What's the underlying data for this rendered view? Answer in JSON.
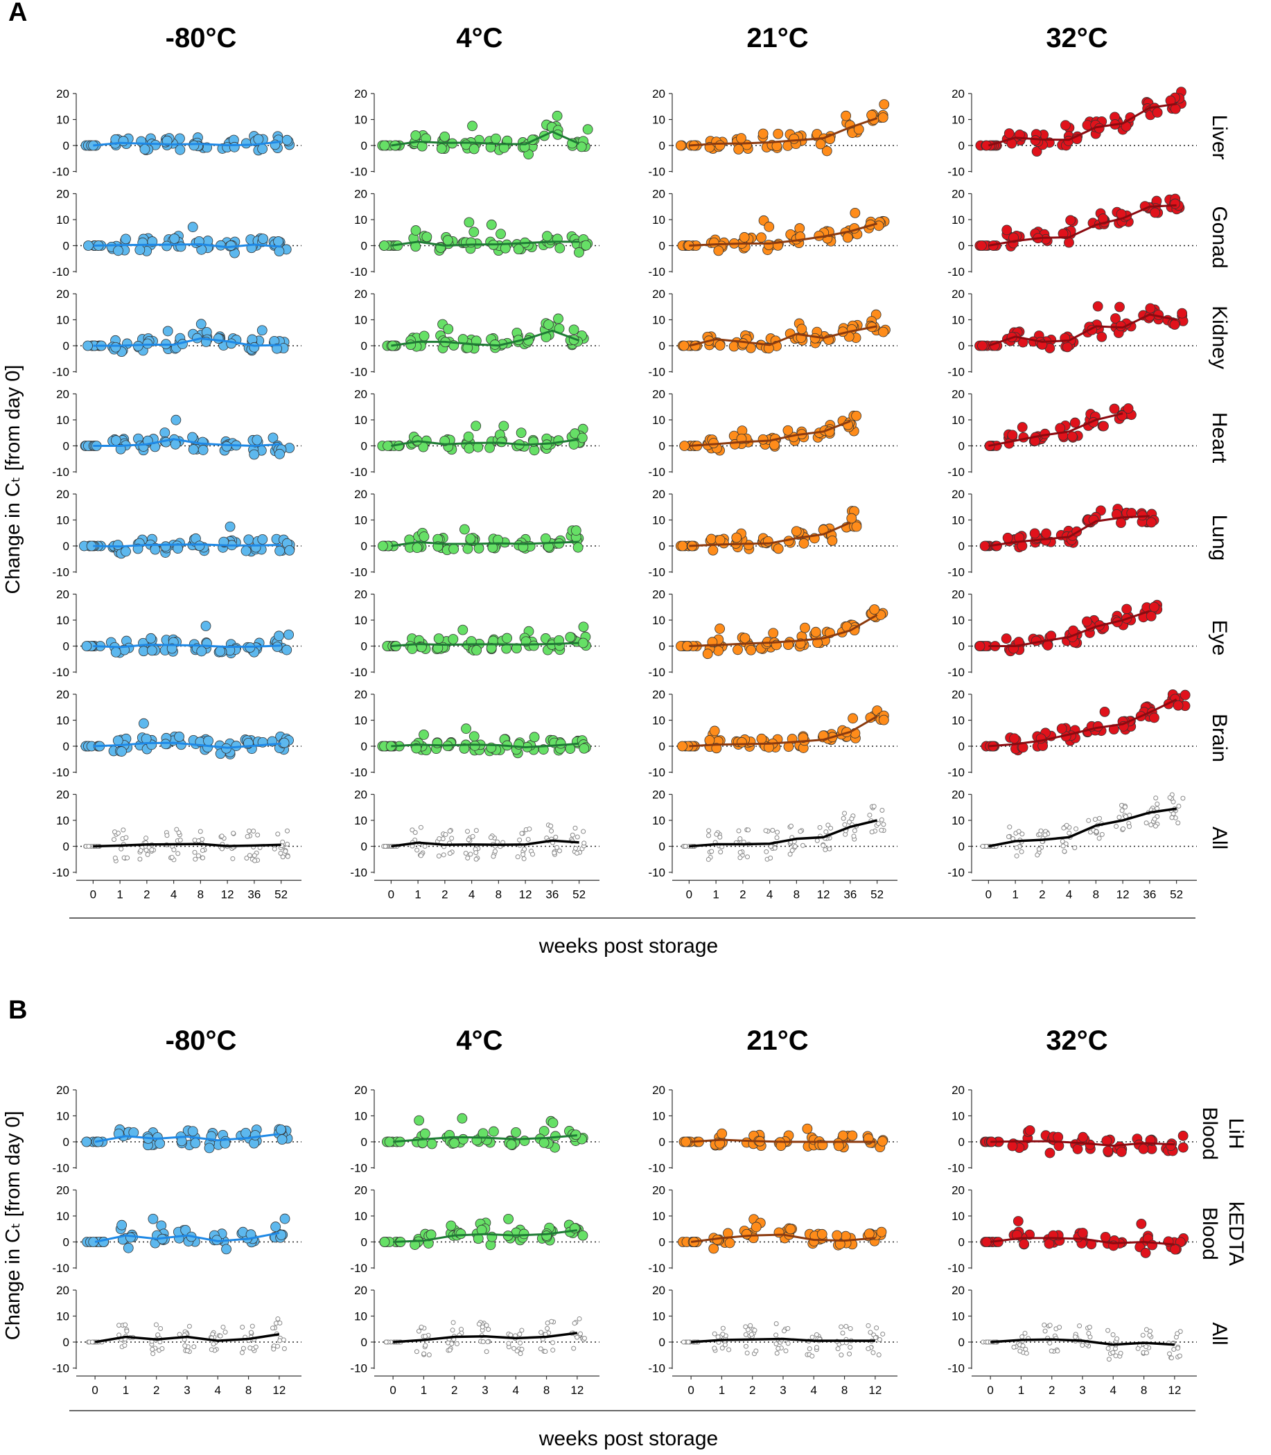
{
  "panel_labels": [
    "A",
    "B"
  ],
  "temperatures": [
    "-80°C",
    "4°C",
    "21°C",
    "32°C"
  ],
  "y_axis_label": "Change in Cₜ [from day 0]",
  "x_axis_label": "weeks post storage",
  "y_ticks": [
    20,
    10,
    0,
    -10
  ],
  "colors": {
    "-80°C": {
      "fill": "#5DB8EE",
      "line": "#1E88E5"
    },
    "4°C": {
      "fill": "#66E066",
      "line": "#1E7B34"
    },
    "21°C": {
      "fill": "#FF8C1A",
      "line": "#8B3A0E"
    },
    "32°C": {
      "fill": "#E0121B",
      "line": "#8B0A10"
    },
    "All": {
      "fill": "#cccccc",
      "line": "#000000"
    }
  },
  "chart_data": [
    {
      "panel": "A",
      "type": "scatter",
      "xlabel": "weeks post storage",
      "ylabel": "Change in Cₜ [from day 0]",
      "ylim": [
        -10,
        20
      ],
      "categories": [
        "0",
        "1",
        "2",
        "4",
        "8",
        "12",
        "36",
        "52"
      ],
      "rows": [
        "Liver",
        "Gonad",
        "Kidney",
        "Heart",
        "Lung",
        "Eye",
        "Brain",
        "All"
      ],
      "series": {
        "-80°C": [
          [
            0,
            1.0,
            0.7,
            0.4,
            0.6,
            0.1,
            0.3,
            1.5
          ],
          [
            0,
            0.2,
            0.3,
            0.4,
            0.5,
            -0.6,
            0.4,
            -0.4
          ],
          [
            0,
            0.0,
            0.4,
            0.4,
            2.8,
            1.7,
            0.0,
            0.3
          ],
          [
            0,
            0.0,
            0.6,
            2.6,
            0.9,
            0.3,
            0.0,
            0.6
          ],
          [
            0,
            -0.2,
            0.4,
            0.5,
            0.6,
            0.2,
            0.2,
            0.4
          ],
          [
            0,
            -0.4,
            0.5,
            0.4,
            0.2,
            -0.3,
            -0.2,
            0.2
          ],
          [
            0,
            0.4,
            1.2,
            1.3,
            0.4,
            -0.6,
            0.2,
            1.0
          ],
          [
            0,
            0.3,
            0.7,
            0.8,
            0.9,
            0.1,
            0.3,
            0.6
          ]
        ],
        "4°C": [
          [
            0,
            1.5,
            1.0,
            1.1,
            0.6,
            0.5,
            5.3,
            0.7
          ],
          [
            0,
            1.5,
            0.0,
            0.4,
            0.5,
            1.0,
            1.5,
            1.5
          ],
          [
            0,
            1.5,
            1.5,
            0.6,
            0.1,
            2.5,
            5.8,
            2.0
          ],
          [
            0,
            1.8,
            0.6,
            1.1,
            1.2,
            0.4,
            1.0,
            2.5
          ],
          [
            0,
            1.5,
            0.8,
            0.8,
            1.0,
            0.8,
            1.2,
            1.6
          ],
          [
            0,
            0.8,
            0.5,
            0.7,
            0.7,
            0.6,
            0.8,
            1.2
          ],
          [
            0,
            0.6,
            0.3,
            0.6,
            0.4,
            -0.4,
            0.2,
            1.0
          ],
          [
            0,
            1.4,
            0.6,
            0.7,
            0.6,
            0.7,
            2.2,
            1.5
          ]
        ],
        "21°C": [
          [
            0,
            0.7,
            0.8,
            1.2,
            2.0,
            2.8,
            7.0,
            10.5
          ],
          [
            0,
            0.5,
            0.8,
            0.8,
            2.0,
            3.5,
            5.5,
            8.5
          ],
          [
            0,
            2.5,
            1.5,
            0.3,
            4.5,
            3.0,
            5.5,
            7.5
          ],
          [
            0,
            0.7,
            1.5,
            2.0,
            4.2,
            5.5,
            9.5,
            null
          ],
          [
            0,
            0.5,
            0.8,
            1.0,
            3.0,
            4.5,
            9.0,
            null
          ],
          [
            0,
            0.4,
            0.9,
            1.3,
            2.0,
            3.0,
            6.0,
            12.0
          ],
          [
            0,
            0.6,
            0.8,
            1.0,
            1.7,
            2.5,
            5.5,
            11.5
          ],
          [
            0,
            0.8,
            0.8,
            1.0,
            2.9,
            3.5,
            7.5,
            10.0
          ]
        ],
        "32°C": [
          [
            0,
            3.0,
            2.3,
            2.2,
            7.0,
            8.5,
            14.5,
            16.0
          ],
          [
            0,
            1.8,
            3.0,
            3.2,
            8.0,
            10.5,
            15.0,
            15.5
          ],
          [
            0,
            3.5,
            1.5,
            2.0,
            7.5,
            7.0,
            12.0,
            10.0
          ],
          [
            0,
            2.0,
            4.0,
            5.5,
            10.0,
            12.5,
            null,
            null
          ],
          [
            0,
            1.5,
            2.5,
            3.5,
            9.5,
            11.0,
            11.5,
            null
          ],
          [
            0,
            0.0,
            1.8,
            3.5,
            7.5,
            10.0,
            13.5,
            null
          ],
          [
            0,
            0.8,
            2.2,
            4.5,
            7.0,
            8.5,
            13.0,
            18.0
          ],
          [
            0,
            2.0,
            2.5,
            3.5,
            8.0,
            10.0,
            13.0,
            14.5
          ]
        ]
      }
    },
    {
      "panel": "B",
      "type": "scatter",
      "xlabel": "weeks post storage",
      "ylabel": "Change in Cₜ [from day 0]",
      "ylim": [
        -10,
        20
      ],
      "categories": [
        "0",
        "1",
        "2",
        "3",
        "4",
        "8",
        "12"
      ],
      "rows": [
        "LiH Blood",
        "kEDTA Blood",
        "All"
      ],
      "series": {
        "-80°C": [
          [
            0,
            2.2,
            1.2,
            2.0,
            0.6,
            1.5,
            3.0
          ],
          [
            0,
            2.5,
            1.2,
            2.5,
            0.3,
            1.2,
            3.5
          ],
          [
            0,
            2.0,
            1.0,
            2.0,
            0.5,
            1.2,
            3.0
          ]
        ],
        "4°C": [
          [
            0,
            1.0,
            1.8,
            1.6,
            1.0,
            1.5,
            2.5
          ],
          [
            0,
            0.5,
            2.5,
            3.0,
            2.5,
            3.0,
            4.5
          ],
          [
            0,
            0.8,
            2.0,
            2.2,
            1.5,
            2.0,
            3.5
          ]
        ],
        "21°C": [
          [
            0,
            0.8,
            0.3,
            0.0,
            0.0,
            0.0,
            0.0
          ],
          [
            0,
            1.5,
            2.5,
            2.8,
            0.8,
            0.5,
            1.5
          ],
          [
            0,
            0.8,
            1.0,
            1.2,
            0.5,
            0.5,
            0.5
          ]
        ],
        "32°C": [
          [
            0,
            0.2,
            0.2,
            -0.5,
            -1.5,
            -0.5,
            -1.0
          ],
          [
            0,
            1.5,
            1.5,
            1.2,
            -0.5,
            0.0,
            -1.0
          ],
          [
            0,
            0.8,
            1.0,
            0.5,
            -1.0,
            -0.3,
            -1.0
          ]
        ]
      }
    }
  ]
}
